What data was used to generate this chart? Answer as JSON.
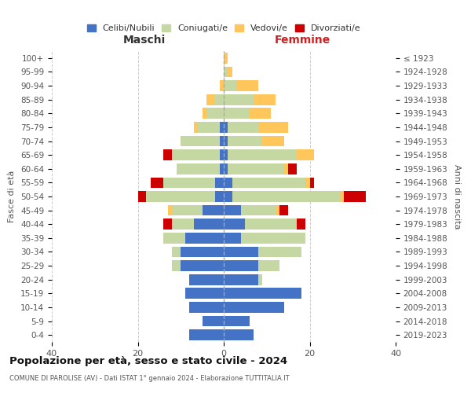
{
  "age_groups": [
    "100+",
    "95-99",
    "90-94",
    "85-89",
    "80-84",
    "75-79",
    "70-74",
    "65-69",
    "60-64",
    "55-59",
    "50-54",
    "45-49",
    "40-44",
    "35-39",
    "30-34",
    "25-29",
    "20-24",
    "15-19",
    "10-14",
    "5-9",
    "0-4"
  ],
  "birth_years": [
    "≤ 1923",
    "1924-1928",
    "1929-1933",
    "1934-1938",
    "1939-1943",
    "1944-1948",
    "1949-1953",
    "1954-1958",
    "1959-1963",
    "1964-1968",
    "1969-1973",
    "1974-1978",
    "1979-1983",
    "1984-1988",
    "1989-1993",
    "1994-1998",
    "1999-2003",
    "2004-2008",
    "2009-2013",
    "2014-2018",
    "2019-2023"
  ],
  "colors": {
    "celibi": "#4472C4",
    "coniugati": "#c5d8a4",
    "vedovi": "#ffc65c",
    "divorziati": "#cc0000"
  },
  "maschi": {
    "celibi": [
      0,
      0,
      0,
      0,
      0,
      1,
      1,
      1,
      1,
      2,
      2,
      5,
      7,
      9,
      10,
      10,
      8,
      9,
      8,
      5,
      8
    ],
    "coniugati": [
      0,
      0,
      0,
      2,
      4,
      5,
      9,
      11,
      10,
      12,
      16,
      7,
      5,
      5,
      2,
      2,
      0,
      0,
      0,
      0,
      0
    ],
    "vedovi": [
      0,
      0,
      1,
      2,
      1,
      1,
      0,
      0,
      0,
      0,
      0,
      1,
      0,
      0,
      0,
      0,
      0,
      0,
      0,
      0,
      0
    ],
    "divorziati": [
      0,
      0,
      0,
      0,
      0,
      0,
      0,
      2,
      0,
      3,
      2,
      0,
      2,
      0,
      0,
      0,
      0,
      0,
      0,
      0,
      0
    ]
  },
  "femmine": {
    "celibi": [
      0,
      0,
      0,
      0,
      0,
      1,
      1,
      1,
      1,
      2,
      2,
      4,
      5,
      4,
      8,
      8,
      8,
      18,
      14,
      6,
      7
    ],
    "coniugati": [
      0,
      1,
      3,
      7,
      6,
      7,
      8,
      16,
      13,
      17,
      25,
      8,
      12,
      15,
      10,
      5,
      1,
      0,
      0,
      0,
      0
    ],
    "vedovi": [
      1,
      1,
      5,
      5,
      5,
      7,
      5,
      4,
      1,
      1,
      1,
      1,
      0,
      0,
      0,
      0,
      0,
      0,
      0,
      0,
      0
    ],
    "divorziati": [
      0,
      0,
      0,
      0,
      0,
      0,
      0,
      0,
      2,
      1,
      5,
      2,
      2,
      0,
      0,
      0,
      0,
      0,
      0,
      0,
      0
    ]
  },
  "title": "Popolazione per età, sesso e stato civile - 2024",
  "subtitle": "COMUNE DI PAROLISE (AV) - Dati ISTAT 1° gennaio 2024 - Elaborazione TUTTITALIA.IT",
  "xlabel_left": "Maschi",
  "xlabel_right": "Femmine",
  "ylabel_left": "Fasce di età",
  "ylabel_right": "Anni di nascita",
  "xlim": 40,
  "bg_color": "#ffffff",
  "grid_color": "#cccccc",
  "legend_labels": [
    "Celibi/Nubili",
    "Coniugati/e",
    "Vedovi/e",
    "Divorziati/e"
  ]
}
